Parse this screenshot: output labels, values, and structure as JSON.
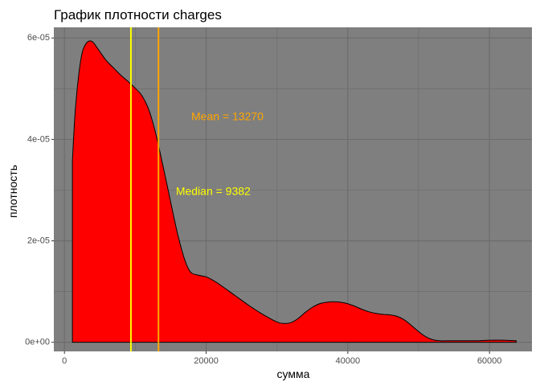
{
  "chart_data": {
    "type": "area",
    "title": "График плотности charges",
    "xlabel": "сумма",
    "ylabel": "плотность",
    "xlim": [
      -1500,
      66000
    ],
    "ylim": [
      -1.8e-06,
      6.21e-05
    ],
    "x_ticks": [
      0,
      20000,
      40000,
      60000
    ],
    "x_tick_labels": [
      "0",
      "20000",
      "40000",
      "60000"
    ],
    "y_ticks": [
      0,
      2e-05,
      4e-05,
      6e-05
    ],
    "y_tick_labels": [
      "0e+00",
      "2e-05",
      "4e-05",
      "6e-05"
    ],
    "x_minor_ticks": [
      10000,
      30000,
      50000
    ],
    "y_minor_ticks": [
      1e-05,
      3e-05,
      5e-05
    ],
    "grid": true,
    "legend": "none",
    "series": [
      {
        "x": [
          1122,
          1500,
          2000,
          2500,
          3000,
          3500,
          4000,
          4600,
          5000,
          5500,
          6000,
          7000,
          8000,
          9000,
          10000,
          10800,
          11500,
          12000,
          12500,
          13000,
          13500,
          14000,
          14500,
          15000,
          15500,
          16000,
          16500,
          17000,
          17500,
          18000,
          19000,
          20000,
          21000,
          22000,
          24000,
          26000,
          28000,
          30000,
          31000,
          32000,
          33000,
          34000,
          35000,
          36000,
          37000,
          38000,
          39000,
          40000,
          41000,
          42000,
          43000,
          44000,
          45000,
          46000,
          47000,
          48000,
          49000,
          50000,
          51000,
          52000,
          53000,
          54000,
          56000,
          58000,
          60000,
          62000,
          63770
        ],
        "y": [
          3.58e-05,
          4.52e-05,
          5.26e-05,
          5.71e-05,
          5.88e-05,
          5.94e-05,
          5.92e-05,
          5.81e-05,
          5.73e-05,
          5.63e-05,
          5.54e-05,
          5.4e-05,
          5.26e-05,
          5.14e-05,
          5.01e-05,
          4.89e-05,
          4.72e-05,
          4.55e-05,
          4.32e-05,
          4.05e-05,
          3.74e-05,
          3.42e-05,
          3.09e-05,
          2.76e-05,
          2.43e-05,
          2.12e-05,
          1.85e-05,
          1.62e-05,
          1.45e-05,
          1.36e-05,
          1.32e-05,
          1.29e-05,
          1.22e-05,
          1.13e-05,
          9.3e-06,
          7.3e-06,
          5.5e-06,
          4e-06,
          3.7e-06,
          3.9e-06,
          4.7e-06,
          5.9e-06,
          6.9e-06,
          7.6e-06,
          7.9e-06,
          8e-06,
          7.9e-06,
          7.6e-06,
          7.1e-06,
          6.5e-06,
          6e-06,
          5.7e-06,
          5.5e-06,
          5.4e-06,
          5.1e-06,
          4.4e-06,
          3.3e-06,
          2.1e-06,
          1.1e-06,
          5e-07,
          3e-07,
          3e-07,
          3e-07,
          3e-07,
          4e-07,
          4e-07,
          3e-07
        ]
      }
    ],
    "vlines": [
      {
        "name": "median",
        "x": 9382,
        "color": "#FFFF00"
      },
      {
        "name": "mean",
        "x": 13270,
        "color": "#FFA500"
      }
    ],
    "annotations": [
      {
        "name": "mean",
        "text": "Mean = 13270",
        "x": 23000,
        "y": 4.44e-05,
        "color": "#FFA500"
      },
      {
        "name": "median",
        "text": "Median = 9382",
        "x": 21000,
        "y": 2.96e-05,
        "color": "#FFFF00"
      }
    ],
    "colors": {
      "fill": "#FF0000",
      "outline": "#000000",
      "panel_background": "#7F7F7F",
      "grid": "#6B6B6B"
    }
  }
}
